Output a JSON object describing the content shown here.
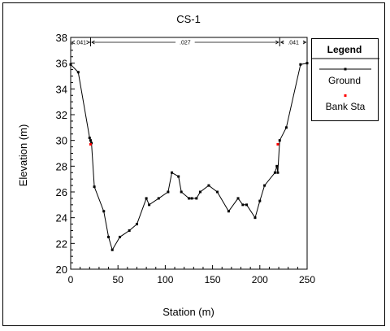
{
  "colors": {
    "ground": "#000000",
    "bank_station": "#ff0000"
  },
  "chart_data": {
    "type": "line",
    "title": "CS-1",
    "xlabel": "Station (m)",
    "ylabel": "Elevation (m)",
    "xlim": [
      0,
      250
    ],
    "ylim": [
      20,
      38
    ],
    "xticks": [
      "0",
      "50",
      "100",
      "150",
      "200",
      "250"
    ],
    "yticks": [
      "20",
      "22",
      "24",
      "26",
      "28",
      "30",
      "32",
      "34",
      "36",
      "38"
    ],
    "grid": false,
    "legend": {
      "title": "Legend",
      "placement": "right"
    },
    "mannings_n": [
      {
        "label": ".041",
        "from": 0,
        "to": 21
      },
      {
        "label": ".027",
        "from": 21,
        "to": 221
      },
      {
        "label": ".041",
        "from": 221,
        "to": 250
      }
    ],
    "series": [
      {
        "name": "Ground",
        "x": [
          0,
          8,
          20,
          21,
          22,
          25,
          35,
          40,
          44,
          52,
          62,
          70,
          80,
          83,
          93,
          103,
          107,
          114,
          117,
          125,
          128,
          133,
          137,
          146,
          155,
          167,
          177,
          182,
          186,
          195,
          200,
          205,
          216,
          218,
          219,
          221,
          228,
          243,
          250
        ],
        "y": [
          35.9,
          35.3,
          30.2,
          30.0,
          29.8,
          26.4,
          24.5,
          22.5,
          21.5,
          22.5,
          23.0,
          23.5,
          25.5,
          25.0,
          25.5,
          26.0,
          27.5,
          27.2,
          26.0,
          25.5,
          25.5,
          25.5,
          26.0,
          26.5,
          26.0,
          24.5,
          25.5,
          25.0,
          25.0,
          24.0,
          25.3,
          26.5,
          27.5,
          28.0,
          27.5,
          30.0,
          31.0,
          35.9,
          36.0
        ]
      },
      {
        "name": "Bank Sta",
        "x": [
          21,
          219
        ],
        "y": [
          29.7,
          29.7
        ]
      }
    ]
  }
}
